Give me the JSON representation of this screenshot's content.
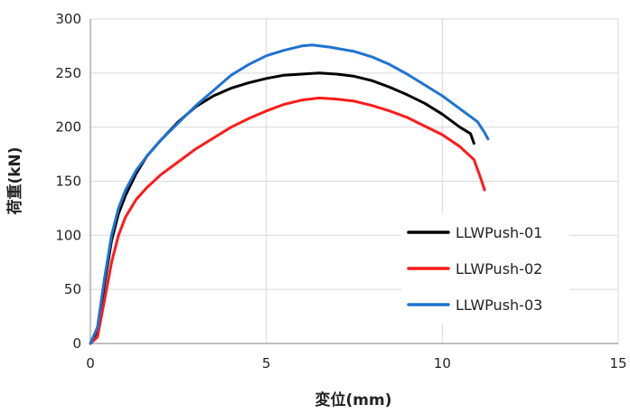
{
  "chart_data": {
    "type": "line",
    "xlabel": "変位(mm)",
    "ylabel": "荷重(kN)",
    "xlim": [
      0,
      15
    ],
    "ylim": [
      0,
      300
    ],
    "x_ticks": [
      0,
      5,
      10,
      15
    ],
    "y_ticks": [
      0,
      50,
      100,
      150,
      200,
      250,
      300
    ],
    "x_tick_labels": [
      "0",
      "5",
      "10",
      "15"
    ],
    "y_tick_labels": [
      "0",
      "50",
      "100",
      "150",
      "200",
      "250",
      "300"
    ],
    "grid": "major gridlines on both axes",
    "legend_position": "lower-right inside plot",
    "series": [
      {
        "name": "LLWPush-01",
        "color": "#000000",
        "points": [
          [
            0,
            0
          ],
          [
            0.2,
            12
          ],
          [
            0.4,
            55
          ],
          [
            0.6,
            95
          ],
          [
            0.8,
            120
          ],
          [
            1.0,
            137
          ],
          [
            1.3,
            157
          ],
          [
            1.6,
            173
          ],
          [
            2.0,
            188
          ],
          [
            2.5,
            205
          ],
          [
            3.0,
            219
          ],
          [
            3.5,
            229
          ],
          [
            4.0,
            236
          ],
          [
            4.5,
            241
          ],
          [
            5.0,
            245
          ],
          [
            5.5,
            248
          ],
          [
            6.0,
            249
          ],
          [
            6.5,
            250
          ],
          [
            7.0,
            249
          ],
          [
            7.5,
            247
          ],
          [
            8.0,
            243
          ],
          [
            8.5,
            237
          ],
          [
            9.0,
            230
          ],
          [
            9.5,
            222
          ],
          [
            10.0,
            212
          ],
          [
            10.5,
            200
          ],
          [
            10.8,
            194
          ],
          [
            10.9,
            185
          ]
        ]
      },
      {
        "name": "LLWPush-02",
        "color": "#ff1a1a",
        "points": [
          [
            0,
            0
          ],
          [
            0.2,
            6
          ],
          [
            0.4,
            40
          ],
          [
            0.6,
            75
          ],
          [
            0.8,
            100
          ],
          [
            1.0,
            117
          ],
          [
            1.3,
            133
          ],
          [
            1.6,
            144
          ],
          [
            2.0,
            156
          ],
          [
            2.5,
            168
          ],
          [
            3.0,
            180
          ],
          [
            3.5,
            190
          ],
          [
            4.0,
            200
          ],
          [
            4.5,
            208
          ],
          [
            5.0,
            215
          ],
          [
            5.5,
            221
          ],
          [
            6.0,
            225
          ],
          [
            6.5,
            227
          ],
          [
            7.0,
            226
          ],
          [
            7.5,
            224
          ],
          [
            8.0,
            220
          ],
          [
            8.5,
            215
          ],
          [
            9.0,
            209
          ],
          [
            9.5,
            201
          ],
          [
            10.0,
            193
          ],
          [
            10.5,
            182
          ],
          [
            10.9,
            170
          ],
          [
            11.1,
            152
          ],
          [
            11.2,
            142
          ]
        ]
      },
      {
        "name": "LLWPush-03",
        "color": "#1e73d2",
        "points": [
          [
            0,
            0
          ],
          [
            0.2,
            15
          ],
          [
            0.4,
            60
          ],
          [
            0.6,
            100
          ],
          [
            0.8,
            125
          ],
          [
            1.0,
            142
          ],
          [
            1.3,
            160
          ],
          [
            1.6,
            173
          ],
          [
            2.0,
            188
          ],
          [
            2.5,
            204
          ],
          [
            3.0,
            220
          ],
          [
            3.5,
            234
          ],
          [
            4.0,
            248
          ],
          [
            4.5,
            258
          ],
          [
            5.0,
            266
          ],
          [
            5.5,
            271
          ],
          [
            6.0,
            275
          ],
          [
            6.3,
            276
          ],
          [
            6.8,
            274
          ],
          [
            7.5,
            270
          ],
          [
            8.0,
            265
          ],
          [
            8.5,
            258
          ],
          [
            9.0,
            249
          ],
          [
            9.5,
            239
          ],
          [
            10.0,
            229
          ],
          [
            10.5,
            217
          ],
          [
            11.0,
            205
          ],
          [
            11.2,
            195
          ],
          [
            11.3,
            189
          ]
        ]
      }
    ]
  }
}
